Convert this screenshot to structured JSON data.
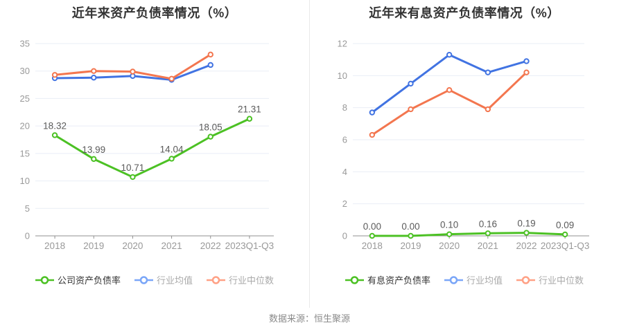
{
  "footer": {
    "source_label": "数据来源：恒生聚源"
  },
  "chart_data": [
    {
      "type": "line",
      "title": "近年来资产负债率情况（%）",
      "categories": [
        "2018",
        "2019",
        "2020",
        "2021",
        "2022",
        "2023Q1-Q3"
      ],
      "ylim": [
        0,
        35
      ],
      "ytick_step": 5,
      "yticks": [
        0,
        5,
        10,
        15,
        20,
        25,
        30,
        35
      ],
      "grid": true,
      "legend_position": "bottom",
      "series": [
        {
          "name": "公司资产负债率",
          "color": "#4cc124",
          "legend_color": "#4cc124",
          "values": [
            18.32,
            13.99,
            10.71,
            14.04,
            18.05,
            21.31
          ],
          "labels": [
            "18.32",
            "13.99",
            "10.71",
            "14.04",
            "18.05",
            "21.31"
          ]
        },
        {
          "name": "行业均值",
          "color": "#4173e2",
          "legend_color": "#7aa6f8",
          "values": [
            28.7,
            28.8,
            29.1,
            28.4,
            31.1
          ]
        },
        {
          "name": "行业中位数",
          "color": "#f3764f",
          "legend_color": "#ffa185",
          "values": [
            29.3,
            30.0,
            29.9,
            28.6,
            33.0
          ]
        }
      ]
    },
    {
      "type": "line",
      "title": "近年来有息资产负债率情况（%）",
      "categories": [
        "2018",
        "2019",
        "2020",
        "2021",
        "2022",
        "2023Q1-Q3"
      ],
      "ylim": [
        0,
        12
      ],
      "ytick_step": 2,
      "yticks": [
        0,
        2,
        4,
        6,
        8,
        10,
        12
      ],
      "grid": true,
      "legend_position": "bottom",
      "series": [
        {
          "name": "有息资产负债率",
          "color": "#4cc124",
          "legend_color": "#4cc124",
          "values": [
            0.0,
            0.0,
            0.1,
            0.16,
            0.19,
            0.09
          ],
          "labels": [
            "0.00",
            "0.00",
            "0.10",
            "0.16",
            "0.19",
            "0.09"
          ]
        },
        {
          "name": "行业均值",
          "color": "#4173e2",
          "legend_color": "#7aa6f8",
          "values": [
            7.7,
            9.5,
            11.3,
            10.2,
            10.9
          ]
        },
        {
          "name": "行业中位数",
          "color": "#f3764f",
          "legend_color": "#ffa185",
          "values": [
            6.3,
            7.9,
            9.1,
            7.9,
            10.2
          ]
        }
      ]
    }
  ],
  "style": {
    "axis_color": "#909090",
    "grid_color": "#e9eef6",
    "tick_label_color": "#999999",
    "data_label_color": "#5a5a5a",
    "title_color": "#333333"
  }
}
